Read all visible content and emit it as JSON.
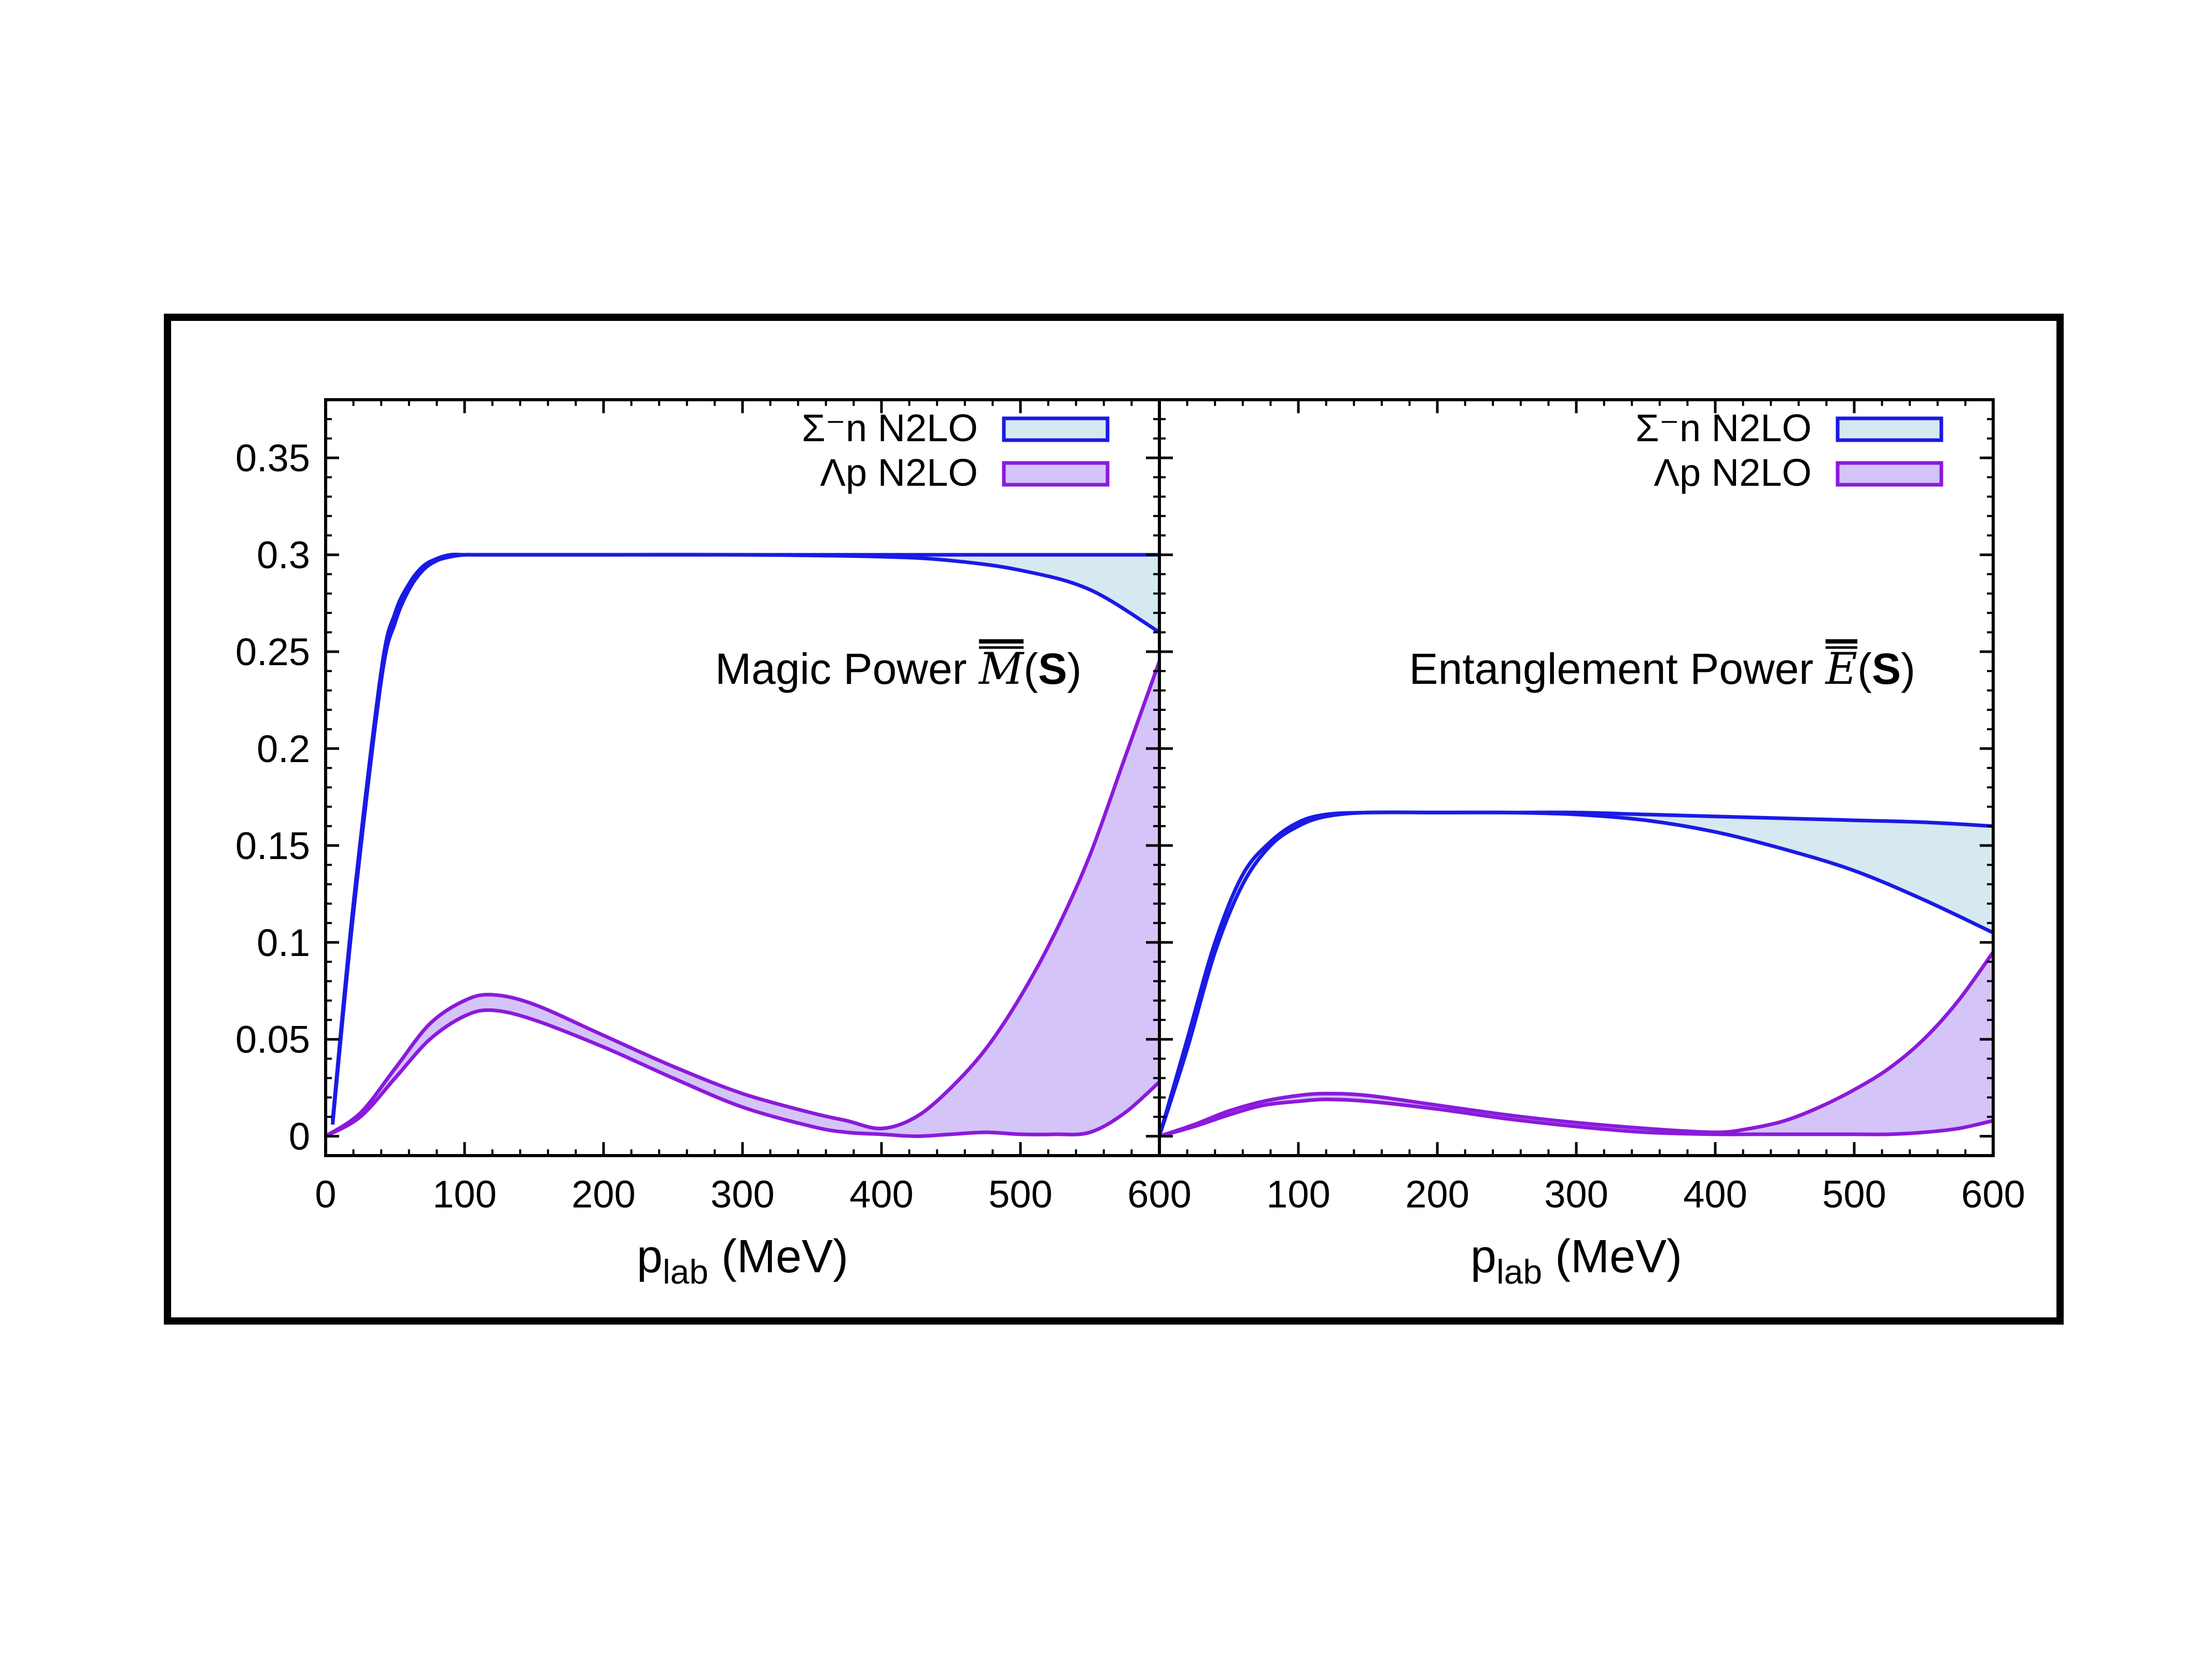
{
  "chart_data": [
    {
      "type": "area",
      "annotation": {
        "prefix": "Magic Power ",
        "symbol": "M",
        "open": "(",
        "bold": "S",
        "close": ")"
      },
      "xlabel": {
        "main": "p",
        "sub": "lab",
        "unit": " (MeV)"
      },
      "xlim": [
        0,
        600
      ],
      "ylim": [
        -0.01,
        0.38
      ],
      "x_ticks": [
        0,
        100,
        200,
        300,
        400,
        500,
        600
      ],
      "x_tick_labels": [
        "0",
        "100",
        "200",
        "300",
        "400",
        "500",
        "600"
      ],
      "y_ticks": [
        0,
        0.05,
        0.1,
        0.15,
        0.2,
        0.25,
        0.3,
        0.35
      ],
      "y_tick_labels": [
        "0",
        "0.05",
        "0.1",
        "0.15",
        "0.2",
        "0.25",
        "0.3",
        "0.35"
      ],
      "legend_position": "top-right",
      "series": [
        {
          "name": "Σ⁻n N2LO",
          "color": "#1a1ae6",
          "fill": "#d6e8f0",
          "x": [
            5,
            20,
            40,
            50,
            60,
            70,
            80,
            90,
            100,
            110,
            150,
            200,
            300,
            400,
            450,
            500,
            550,
            600
          ],
          "upper": [
            0.008,
            0.12,
            0.24,
            0.27,
            0.285,
            0.294,
            0.298,
            0.3,
            0.3,
            0.3,
            0.3,
            0.3,
            0.3,
            0.3,
            0.3,
            0.3,
            0.3,
            0.3
          ],
          "lower": [
            0.006,
            0.115,
            0.235,
            0.265,
            0.282,
            0.292,
            0.297,
            0.299,
            0.3,
            0.3,
            0.3,
            0.3,
            0.3,
            0.299,
            0.297,
            0.292,
            0.282,
            0.26
          ]
        },
        {
          "name": "Λp N2LO",
          "color": "#8b1adb",
          "fill": "#d4c4f8",
          "x": [
            0,
            25,
            50,
            75,
            100,
            120,
            150,
            200,
            250,
            300,
            350,
            375,
            400,
            425,
            450,
            475,
            500,
            525,
            550,
            575,
            600
          ],
          "upper": [
            0,
            0.012,
            0.035,
            0.058,
            0.07,
            0.073,
            0.068,
            0.052,
            0.036,
            0.022,
            0.012,
            0.008,
            0.004,
            0.01,
            0.025,
            0.045,
            0.072,
            0.105,
            0.145,
            0.195,
            0.245
          ],
          "lower": [
            0,
            0.01,
            0.03,
            0.05,
            0.062,
            0.065,
            0.06,
            0.046,
            0.03,
            0.015,
            0.005,
            0.002,
            0.001,
            0.0,
            0.001,
            0.002,
            0.001,
            0.001,
            0.002,
            0.012,
            0.028
          ]
        }
      ]
    },
    {
      "type": "area",
      "annotation": {
        "prefix": "Entanglement Power ",
        "symbol": "E",
        "open": "(",
        "bold": "S",
        "close": ")"
      },
      "xlabel": {
        "main": "p",
        "sub": "lab",
        "unit": " (MeV)"
      },
      "xlim": [
        0,
        600
      ],
      "ylim": [
        -0.01,
        0.38
      ],
      "x_ticks": [
        0,
        100,
        200,
        300,
        400,
        500,
        600
      ],
      "x_tick_labels": [
        "",
        "100",
        "200",
        "300",
        "400",
        "500",
        "600"
      ],
      "y_ticks": [
        0,
        0.05,
        0.1,
        0.15,
        0.2,
        0.25,
        0.3,
        0.35
      ],
      "legend_position": "top-right",
      "series": [
        {
          "name": "Σ⁻n N2LO",
          "color": "#1a1ae6",
          "fill": "#d6e8f0",
          "x": [
            0,
            20,
            40,
            60,
            80,
            100,
            120,
            150,
            200,
            250,
            300,
            350,
            400,
            450,
            500,
            550,
            600
          ],
          "upper": [
            0,
            0.05,
            0.1,
            0.135,
            0.152,
            0.162,
            0.166,
            0.167,
            0.167,
            0.167,
            0.167,
            0.166,
            0.165,
            0.164,
            0.163,
            0.162,
            0.16
          ],
          "lower": [
            0,
            0.045,
            0.095,
            0.13,
            0.15,
            0.16,
            0.165,
            0.167,
            0.167,
            0.167,
            0.166,
            0.163,
            0.157,
            0.148,
            0.137,
            0.122,
            0.105
          ]
        },
        {
          "name": "Λp N2LO",
          "color": "#8b1adb",
          "fill": "#d4c4f8",
          "x": [
            0,
            25,
            50,
            75,
            100,
            120,
            150,
            200,
            250,
            300,
            350,
            400,
            425,
            450,
            475,
            500,
            525,
            550,
            575,
            600
          ],
          "upper": [
            0,
            0.006,
            0.013,
            0.018,
            0.021,
            0.022,
            0.021,
            0.016,
            0.011,
            0.007,
            0.004,
            0.002,
            0.004,
            0.008,
            0.015,
            0.024,
            0.035,
            0.05,
            0.07,
            0.095
          ],
          "lower": [
            0,
            0.005,
            0.011,
            0.016,
            0.018,
            0.019,
            0.018,
            0.014,
            0.009,
            0.005,
            0.002,
            0.001,
            0.001,
            0.001,
            0.001,
            0.001,
            0.001,
            0.002,
            0.004,
            0.008
          ]
        }
      ]
    }
  ]
}
